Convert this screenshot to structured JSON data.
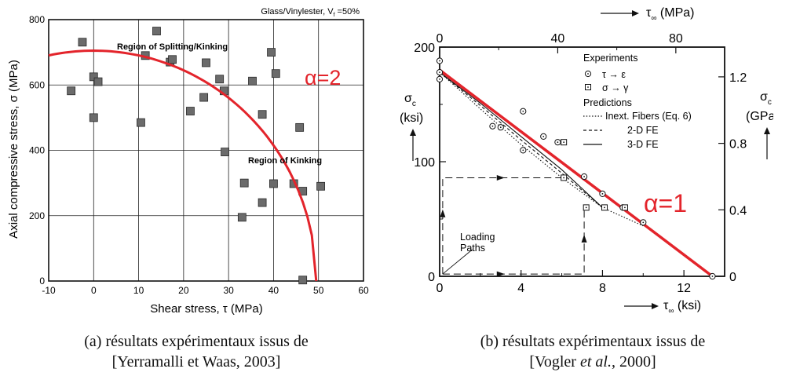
{
  "chart_data": [
    {
      "type": "scatter",
      "annotation_top_right": "Glass/Vinylester, V",
      "annotation_sub": "f",
      "annotation_rest": " =50%",
      "region_label_1": "Region of Splitting/Kinking",
      "region_label_2": "Region of Kinking",
      "criterion_label": "α=2",
      "criterion_color": "#e3242b",
      "xlabel": "Shear stress, τ (MPa)",
      "ylabel": "Axial compressive stress, σ (MPa)",
      "xlim": [
        -10,
        60
      ],
      "ylim": [
        0,
        800
      ],
      "xticks": [
        "-10",
        "0",
        "10",
        "20",
        "30",
        "40",
        "50",
        "60"
      ],
      "yticks": [
        "0",
        "200",
        "400",
        "600",
        "800"
      ],
      "grid": true,
      "criterion_curve": {
        "alpha": 2,
        "sigma0": 705,
        "tau0": 49.5
      },
      "points": [
        [
          -5,
          582
        ],
        [
          -2.5,
          731
        ],
        [
          0,
          500
        ],
        [
          0,
          625
        ],
        [
          1,
          610
        ],
        [
          10.5,
          485
        ],
        [
          11.5,
          690
        ],
        [
          14,
          765
        ],
        [
          17,
          670
        ],
        [
          17.5,
          678
        ],
        [
          21.5,
          520
        ],
        [
          24.5,
          562
        ],
        [
          25,
          668
        ],
        [
          28,
          618
        ],
        [
          29,
          582
        ],
        [
          29.2,
          395
        ],
        [
          35.3,
          612
        ],
        [
          37.5,
          510
        ],
        [
          39.5,
          700
        ],
        [
          40.5,
          635
        ],
        [
          45.8,
          470
        ],
        [
          33.5,
          300
        ],
        [
          40,
          298
        ],
        [
          44.5,
          298
        ],
        [
          46.5,
          275
        ],
        [
          50.5,
          290
        ],
        [
          37.5,
          240
        ],
        [
          33,
          195
        ],
        [
          46.5,
          3
        ]
      ]
    },
    {
      "type": "line",
      "top_axis_label": "τ",
      "top_axis_sub": "∞",
      "top_axis_unit": " (MPa)",
      "bottom_axis_label": "τ",
      "bottom_axis_sub": "∞",
      "bottom_axis_unit": " (ksi)",
      "left_label_1": "σ",
      "left_label_sub": "c",
      "left_label_2": "(ksi)",
      "right_label_1": "σ",
      "right_label_sub": "c",
      "right_label_2": "(GPa)",
      "xlim": [
        0,
        14
      ],
      "ylim": [
        0,
        200
      ],
      "xticks": [
        "0",
        "4",
        "8",
        "12"
      ],
      "yticks": [
        "0",
        "100",
        "200"
      ],
      "top_ticks": [
        "0",
        "40",
        "80"
      ],
      "right_ticks": [
        "0",
        "0.4",
        "0.8",
        "1.2"
      ],
      "criterion_label": "α=1",
      "criterion_color": "#e3242b",
      "criterion_line": [
        [
          0,
          180
        ],
        [
          13.4,
          0
        ]
      ],
      "legend": {
        "experiments_title": "Experiments",
        "exp1": "τ → ε",
        "exp2": "σ → γ",
        "predictions_title": "Predictions",
        "pred1": "Inext. Fibers (Eq. 6)",
        "pred2": "2-D FE",
        "pred3": "3-D FE"
      },
      "loading_label_1": "Loading",
      "loading_label_2": "Paths",
      "series": [
        {
          "name": "τ → ε",
          "marker": "circle-dot",
          "points": [
            [
              0,
              188
            ],
            [
              0,
              178
            ],
            [
              0,
              172
            ],
            [
              2.6,
              131
            ],
            [
              3,
              130
            ],
            [
              4.1,
              144
            ],
            [
              4.1,
              110
            ],
            [
              5.1,
              122
            ],
            [
              5.8,
              117
            ],
            [
              7.1,
              87
            ],
            [
              8,
              72
            ],
            [
              9,
              60
            ],
            [
              10,
              47
            ],
            [
              13.4,
              0
            ]
          ]
        },
        {
          "name": "σ → γ",
          "marker": "square-dot",
          "points": [
            [
              6.1,
              117
            ],
            [
              6.1,
              86
            ],
            [
              7.2,
              60
            ],
            [
              8.1,
              60
            ],
            [
              9.1,
              60
            ]
          ]
        },
        {
          "name": "Inext. Fibers (Eq. 6)",
          "style": "dotted",
          "points": [
            [
              0,
              178
            ],
            [
              2,
              146
            ],
            [
              4,
              115
            ],
            [
              6,
              86
            ],
            [
              8,
              60
            ],
            [
              10,
              44
            ]
          ]
        },
        {
          "name": "2-D FE",
          "style": "dashed",
          "points": [
            [
              0,
              178
            ],
            [
              2,
              149
            ],
            [
              4,
              119
            ],
            [
              6,
              90
            ],
            [
              7.2,
              72
            ],
            [
              8,
              60
            ]
          ]
        },
        {
          "name": "3-D FE",
          "style": "solid",
          "points": [
            [
              0,
              178
            ],
            [
              2,
              151
            ],
            [
              4,
              122
            ],
            [
              6,
              93
            ],
            [
              8,
              60
            ]
          ]
        }
      ]
    }
  ],
  "captions": {
    "a_line1": "(a)  résultats expérimentaux issus de",
    "a_line2": "[Yerramalli et Waas, 2003]",
    "b_line1": "(b)  résultats expérimentaux issus de",
    "b_line2_pre": "[Vogler ",
    "b_line2_it": "et al.",
    "b_line2_post": ", 2000]"
  }
}
